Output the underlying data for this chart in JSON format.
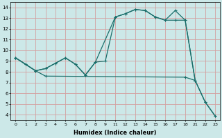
{
  "xlabel": "Humidex (Indice chaleur)",
  "bg_color": "#cce8e8",
  "grid_color": "#d4a0a0",
  "line_color": "#1a6e6a",
  "ylim": [
    3.5,
    14.5
  ],
  "yticks": [
    4,
    5,
    6,
    7,
    8,
    9,
    10,
    11,
    12,
    13,
    14
  ],
  "xtick_labels": [
    "0",
    "1",
    "2",
    "3",
    "4",
    "5",
    "6",
    "7",
    "8",
    "9",
    "11",
    "12",
    "13",
    "14",
    "15",
    "16",
    "17",
    "18",
    "21",
    "22",
    "23"
  ],
  "line1_pos": [
    0,
    1,
    2,
    3,
    4,
    5,
    6,
    7,
    8,
    10,
    11,
    12,
    13,
    14,
    15,
    16,
    17,
    18
  ],
  "line1_y": [
    9.3,
    8.7,
    8.1,
    8.3,
    8.8,
    9.3,
    8.7,
    7.7,
    8.9,
    13.1,
    13.4,
    13.8,
    13.7,
    13.1,
    12.8,
    12.8,
    12.8,
    7.2
  ],
  "line2_pos": [
    0,
    1,
    2,
    3,
    4,
    5,
    6,
    7,
    8,
    9,
    10,
    11,
    12,
    13,
    14,
    15,
    16,
    17,
    18,
    19,
    20
  ],
  "line2_y": [
    9.3,
    8.7,
    8.1,
    8.3,
    8.8,
    9.3,
    8.7,
    7.7,
    8.9,
    9.0,
    13.1,
    13.4,
    13.8,
    13.7,
    13.1,
    12.8,
    13.7,
    12.8,
    7.2,
    5.2,
    3.9
  ],
  "line3_pos": [
    0,
    2,
    3,
    17,
    18,
    19,
    20
  ],
  "line3_y": [
    9.3,
    8.1,
    7.6,
    7.5,
    7.2,
    5.2,
    3.9
  ]
}
